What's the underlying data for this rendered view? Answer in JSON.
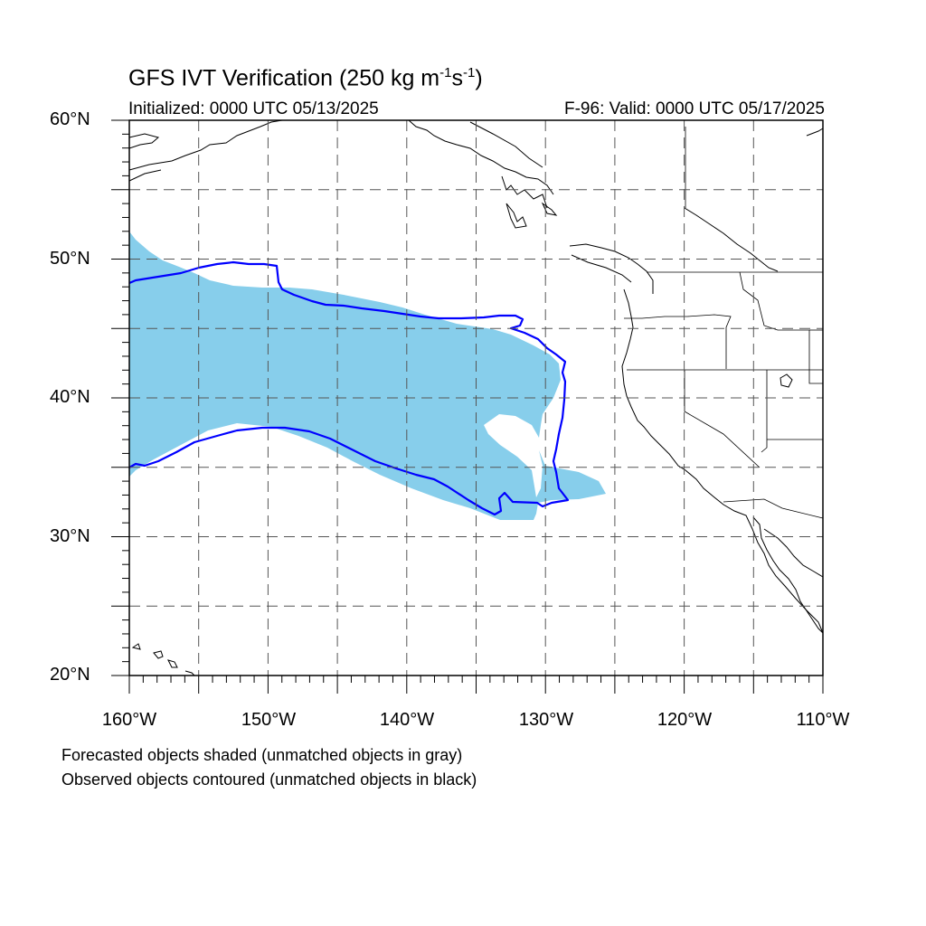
{
  "title": {
    "main": "GFS IVT Verification (250 kg m",
    "sup1": "-1",
    "mid": "s",
    "sup2": "-1",
    "end": ")"
  },
  "subtitle": {
    "initialized": "Initialized: 0000 UTC 05/13/2025",
    "valid": "F-96: Valid: 0000 UTC 05/17/2025"
  },
  "axes": {
    "lat_labels": [
      "60°N",
      "50°N",
      "40°N",
      "30°N",
      "20°N"
    ],
    "lon_labels": [
      "160°W",
      "150°W",
      "140°W",
      "130°W",
      "120°W",
      "110°W"
    ],
    "lat_range": [
      20,
      60
    ],
    "lon_range": [
      -160,
      -110
    ],
    "grid": true
  },
  "captions": {
    "forecast": "Forecasted objects shaded (unmatched objects in gray)",
    "observed": "Observed objects contoured (unmatched objects in black)"
  },
  "colors": {
    "forecast_fill": "#87ceeb",
    "observed_contour": "#0000ff",
    "coastline": "#000000"
  }
}
